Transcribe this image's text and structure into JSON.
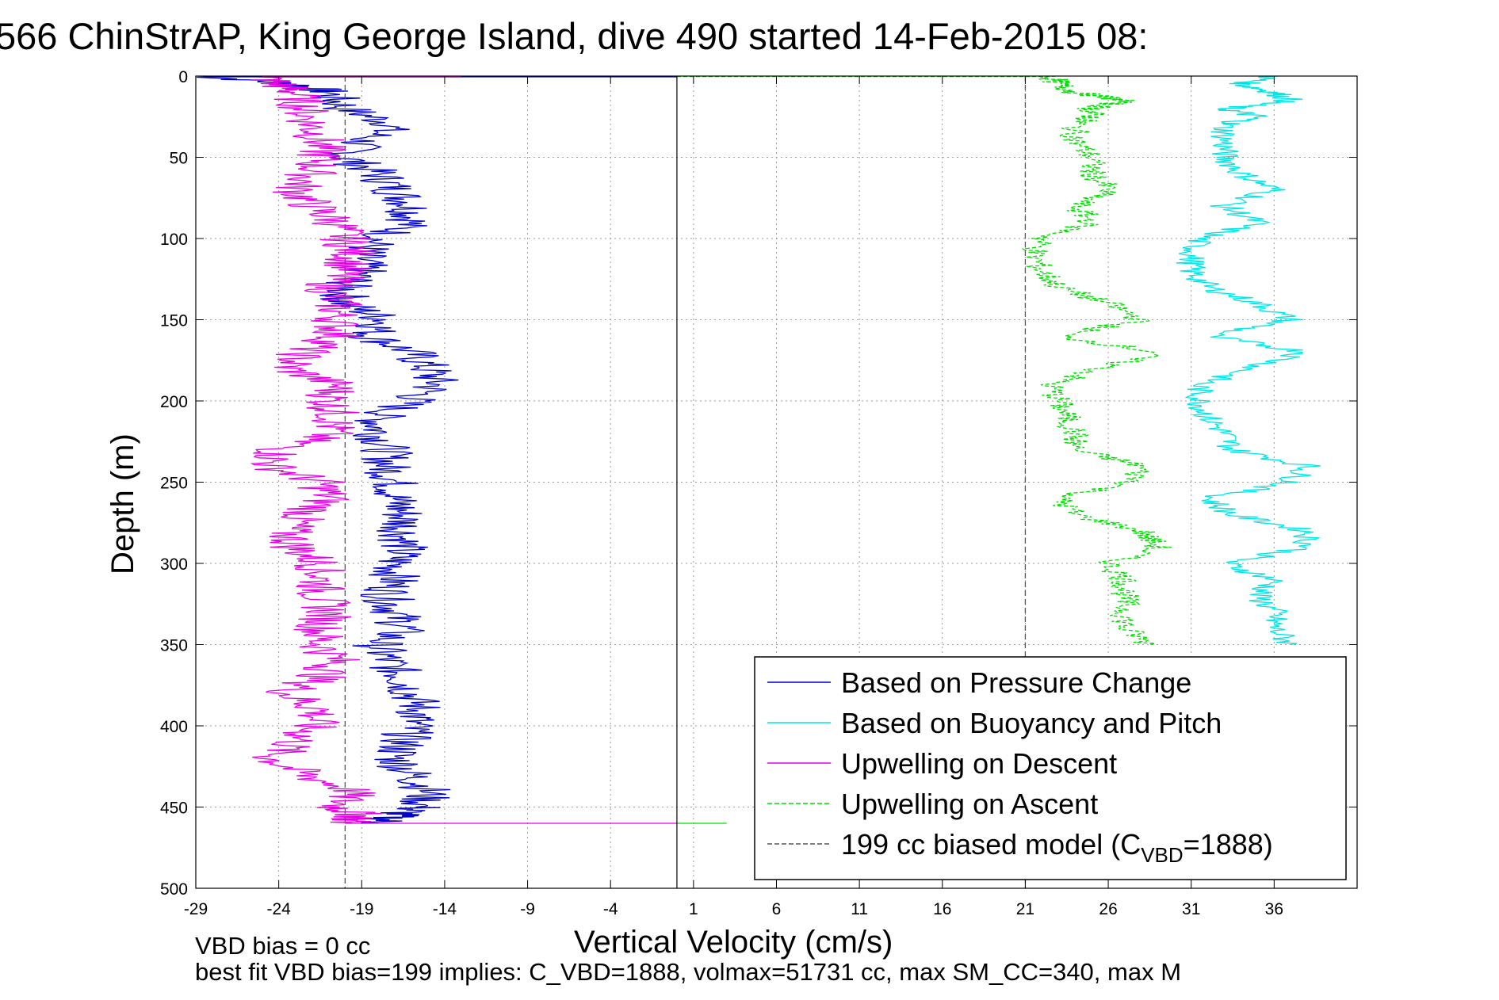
{
  "title": "566 ChinStrAP, King George Island, dive 490 started 14-Feb-2015 08:",
  "footer": {
    "line1": "VBD bias = 0 cc",
    "line2": "best fit VBD bias=199 implies: C_VBD=1888, volmax=51731 cc, max SM_CC=340, max M"
  },
  "chart_data": {
    "type": "line",
    "title": "566 ChinStrAP, King George Island, dive 490 started 14-Feb-2015 08:",
    "xlabel": "Vertical Velocity (cm/s)",
    "ylabel": "Depth (m)",
    "xlim": [
      -29,
      41
    ],
    "ylim": [
      0,
      500
    ],
    "y_reversed": true,
    "grid": true,
    "x_ticks": [
      -29,
      -24,
      -19,
      -14,
      -9,
      -4,
      1,
      6,
      11,
      16,
      21,
      26,
      31,
      36
    ],
    "y_ticks": [
      0,
      50,
      100,
      150,
      200,
      250,
      300,
      350,
      400,
      450,
      500
    ],
    "legend_location": "lower-right",
    "colors": {
      "pressure": "#0000cc",
      "buoyancy": "#00e5e5",
      "descent": "#e600e6",
      "ascent": "#00dd00",
      "model": "#555555"
    },
    "series": [
      {
        "name": "Based on Pressure Change",
        "key": "pressure",
        "style": "solid",
        "depth": [
          0,
          5,
          10,
          20,
          30,
          40,
          50,
          60,
          70,
          80,
          90,
          100,
          110,
          120,
          130,
          140,
          150,
          160,
          170,
          180,
          190,
          200,
          210,
          220,
          230,
          240,
          250,
          260,
          270,
          280,
          290,
          300,
          310,
          320,
          330,
          340,
          350,
          360,
          370,
          380,
          390,
          400,
          410,
          420,
          430,
          440,
          450,
          455,
          460
        ],
        "velocity": [
          -28.5,
          -23,
          -21,
          -20,
          -17,
          -19,
          -20,
          -18,
          -17,
          -16,
          -16,
          -18,
          -19,
          -19,
          -20,
          -20,
          -17.5,
          -18.5,
          -16,
          -15,
          -14.5,
          -16,
          -18,
          -18,
          -17.5,
          -17.5,
          -17,
          -17,
          -16.5,
          -16.5,
          -16.5,
          -17,
          -17,
          -17.5,
          -17,
          -16.5,
          -18,
          -17.5,
          -16.5,
          -16,
          -15.5,
          -16,
          -16.5,
          -17,
          -16,
          -15,
          -15.5,
          -17,
          -18
        ]
      },
      {
        "name": "Upwelling on Descent",
        "key": "descent",
        "style": "solid",
        "depth": [
          0,
          5,
          10,
          20,
          30,
          40,
          50,
          60,
          70,
          80,
          90,
          100,
          110,
          120,
          130,
          140,
          150,
          160,
          170,
          180,
          190,
          200,
          210,
          220,
          230,
          240,
          250,
          260,
          270,
          280,
          290,
          300,
          310,
          320,
          330,
          340,
          350,
          360,
          370,
          380,
          390,
          400,
          410,
          420,
          430,
          440,
          450,
          455,
          460
        ],
        "velocity": [
          -25,
          -24,
          -23,
          -22.5,
          -22,
          -21.5,
          -21.5,
          -22,
          -23,
          -22,
          -20.5,
          -20,
          -19.5,
          -20,
          -21,
          -20.5,
          -20.5,
          -20.5,
          -22.5,
          -23.5,
          -20.5,
          -21,
          -20.5,
          -21,
          -24,
          -24.5,
          -21.5,
          -21,
          -22.5,
          -23.5,
          -23,
          -21.5,
          -21.5,
          -21.5,
          -21,
          -21.5,
          -21.5,
          -20.5,
          -21.5,
          -23.5,
          -21.5,
          -22,
          -23,
          -24.5,
          -22.5,
          -19.5,
          -20.5,
          -19,
          -20
        ]
      },
      {
        "name": "Based on Buoyancy and Pitch",
        "key": "buoyancy",
        "style": "solid",
        "depth": [
          0,
          5,
          10,
          15,
          20,
          25,
          30,
          40,
          50,
          60,
          70,
          80,
          90,
          100,
          110,
          120,
          130,
          140,
          150,
          160,
          170,
          180,
          190,
          200,
          210,
          220,
          230,
          240,
          250,
          260,
          270,
          280,
          290,
          300,
          310,
          320,
          330,
          340,
          350
        ],
        "velocity": [
          36,
          34,
          36,
          37,
          33,
          35,
          33,
          33,
          33,
          34,
          36,
          33,
          35,
          31.5,
          31,
          31,
          32,
          35,
          37,
          32,
          38,
          34.5,
          31.5,
          31.5,
          32,
          33,
          33.5,
          38,
          37,
          32,
          33.5,
          38,
          38,
          33,
          36,
          35,
          36,
          36,
          37
        ]
      },
      {
        "name": "Upwelling on Ascent",
        "key": "ascent",
        "style": "dashed",
        "depth": [
          0,
          5,
          10,
          15,
          20,
          25,
          30,
          40,
          50,
          60,
          70,
          80,
          90,
          100,
          110,
          120,
          130,
          140,
          150,
          160,
          170,
          180,
          190,
          200,
          210,
          220,
          230,
          240,
          250,
          260,
          270,
          280,
          290,
          300,
          310,
          320,
          330,
          340,
          350
        ],
        "velocity": [
          22.5,
          23,
          24,
          27,
          25,
          25,
          24,
          24,
          25,
          25,
          26,
          24,
          25,
          22,
          21.5,
          22,
          23,
          26,
          28,
          23,
          29,
          25.5,
          22.5,
          23,
          23.5,
          24,
          24,
          28,
          27.5,
          23,
          24,
          28,
          29,
          26,
          27,
          27,
          27,
          27,
          28.5
        ]
      }
    ],
    "reference_lines": [
      {
        "name": "199 cc biased model (C",
        "subscript": "VBD",
        "suffix": "=1888)",
        "key": "model",
        "style": "dashed",
        "right_x": 21,
        "left_x": -20
      },
      {
        "key": "zero",
        "style": "solid",
        "x": 0
      }
    ],
    "legend": [
      {
        "label": "Based on Pressure Change",
        "key": "pressure",
        "style": "solid"
      },
      {
        "label": "Based on Buoyancy and Pitch",
        "key": "buoyancy",
        "style": "solid"
      },
      {
        "label": "Upwelling on Descent",
        "key": "descent",
        "style": "solid"
      },
      {
        "label": "Upwelling on Ascent",
        "key": "ascent",
        "style": "dashed"
      },
      {
        "label": "199 cc biased model (C",
        "subscript": "VBD",
        "suffix": "=1888)",
        "key": "model",
        "style": "dashed"
      }
    ]
  }
}
